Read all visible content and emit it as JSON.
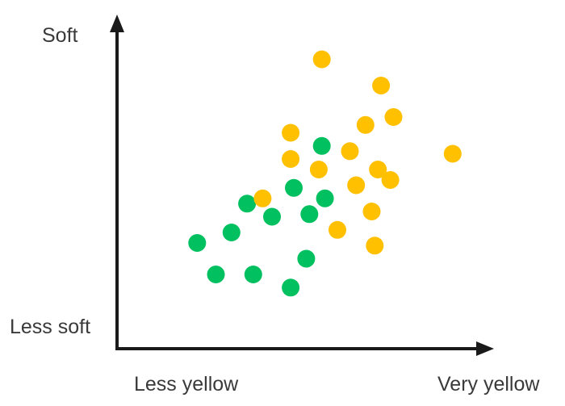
{
  "chart_data": {
    "type": "scatter",
    "title": "",
    "axes": {
      "y_top_label": "Soft",
      "y_bottom_label": "Less soft",
      "x_left_label": "Less yellow",
      "x_right_label": "Very yellow"
    },
    "grid": false,
    "legend": "none",
    "xlim": [
      0,
      100
    ],
    "ylim": [
      0,
      100
    ],
    "series": [
      {
        "color": "#00c060",
        "points": [
          [
            12,
            28
          ],
          [
            23,
            32
          ],
          [
            18,
            16
          ],
          [
            30,
            16
          ],
          [
            28,
            43
          ],
          [
            36,
            38
          ],
          [
            43,
            49
          ],
          [
            48,
            39
          ],
          [
            53,
            45
          ],
          [
            52,
            65
          ],
          [
            47,
            22
          ],
          [
            42,
            11
          ]
        ]
      },
      {
        "color": "#ffc000",
        "points": [
          [
            52,
            98
          ],
          [
            71,
            88
          ],
          [
            75,
            76
          ],
          [
            66,
            73
          ],
          [
            42,
            70
          ],
          [
            61,
            63
          ],
          [
            42,
            60
          ],
          [
            51,
            56
          ],
          [
            70,
            56
          ],
          [
            74,
            52
          ],
          [
            94,
            62
          ],
          [
            63,
            50
          ],
          [
            33,
            45
          ],
          [
            57,
            33
          ],
          [
            68,
            40
          ],
          [
            69,
            27
          ]
        ]
      }
    ]
  }
}
